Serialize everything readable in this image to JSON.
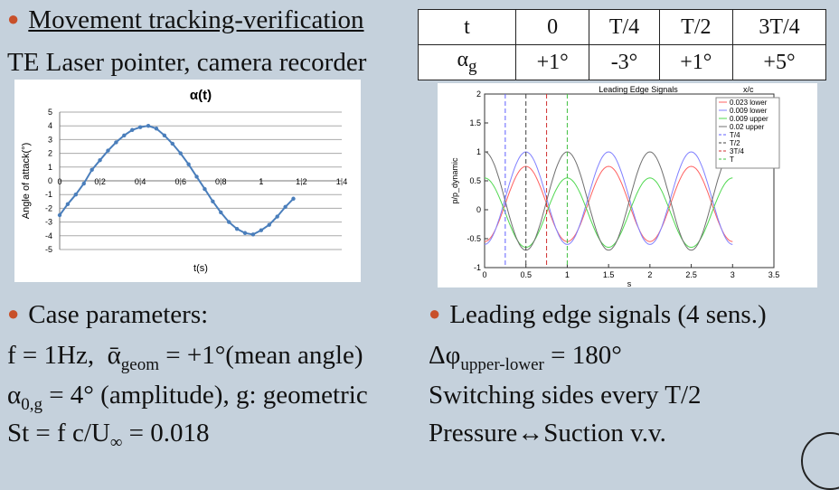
{
  "left": {
    "heading": "Movement tracking-verification",
    "subheading": "TE Laser pointer, camera recorder",
    "case_label": "Case parameters:",
    "f_text": "f = 1Hz,",
    "alpha_bar": "ᾱ",
    "geom_sub": "geom",
    "mean_text": " = +1°(mean angle)",
    "alpha0": "α",
    "a0_sub": "0,g",
    "amp_text": " = 4° (amplitude), g: geometric",
    "st_text": "St = f c/U",
    "st_sub": "∞",
    "st_val": " = 0.018"
  },
  "table": {
    "r1": [
      "t",
      "0",
      "T/4",
      "T/2",
      "3T/4"
    ],
    "r2_label": "α",
    "r2_sub": "g",
    "r2": [
      "+1°",
      "-3°",
      "+1°",
      "+5°"
    ]
  },
  "right": {
    "signals_label": "Leading edge signals (4 sens.)",
    "dphi": "Δφ",
    "dphi_sub": "upper-lower",
    "dphi_val": " = 180°",
    "switch": "Switching sides every T/2",
    "pressure": "Pressure↔Suction v.v."
  },
  "chart_data": [
    {
      "type": "line",
      "title": "α(t)",
      "xlabel": "t(s)",
      "ylabel": "Angle of attack(°)",
      "xlim": [
        0,
        1.4
      ],
      "ylim": [
        -5,
        5
      ],
      "xticks": [
        "0",
        "0,2",
        "0,4",
        "0,6",
        "0,8",
        "1",
        "1,2",
        "1,4"
      ],
      "yticks": [
        "5",
        "4",
        "3",
        "2",
        "1",
        "0",
        "-1",
        "-2",
        "-3",
        "-4",
        "-5"
      ],
      "x": [
        0,
        0.04,
        0.08,
        0.12,
        0.16,
        0.2,
        0.24,
        0.28,
        0.32,
        0.36,
        0.4,
        0.44,
        0.48,
        0.52,
        0.56,
        0.6,
        0.64,
        0.68,
        0.72,
        0.76,
        0.8,
        0.84,
        0.88,
        0.92,
        0.96,
        1.0,
        1.04,
        1.08,
        1.12,
        1.16
      ],
      "y": [
        -2.5,
        -1.7,
        -1.0,
        -0.2,
        0.8,
        1.5,
        2.2,
        2.8,
        3.3,
        3.7,
        3.9,
        4.0,
        3.8,
        3.3,
        2.7,
        2.0,
        1.2,
        0.3,
        -0.6,
        -1.5,
        -2.3,
        -3.0,
        -3.5,
        -3.8,
        -3.9,
        -3.6,
        -3.2,
        -2.6,
        -1.9,
        -1.3
      ],
      "grid": true,
      "legend": "none"
    },
    {
      "type": "line",
      "title": "Leading Edge Signals",
      "xlabel": "s",
      "ylabel": "p/p_dynamic",
      "legend_title": "x/c",
      "legend": "top-right",
      "xlim": [
        0,
        3.5
      ],
      "ylim": [
        -1,
        2
      ],
      "xticks": [
        "0",
        "0.5",
        "1",
        "1.5",
        "2",
        "2.5",
        "3",
        "3.5"
      ],
      "yticks": [
        "2",
        "1.5",
        "1",
        "0.5",
        "0",
        "-0.5",
        "-1"
      ],
      "series": [
        {
          "name": "0.023 lower",
          "color": "#ff6060",
          "phase": 0.5,
          "amp": 0.65,
          "offset": 0.1
        },
        {
          "name": "0.009 lower",
          "color": "#8080ff",
          "phase": 0.5,
          "amp": 0.8,
          "offset": 0.2
        },
        {
          "name": "0.009 upper",
          "color": "#50d850",
          "phase": 0.0,
          "amp": 0.6,
          "offset": -0.05
        },
        {
          "name": "0.02 upper",
          "color": "#707070",
          "phase": 0.0,
          "amp": 0.85,
          "offset": 0.15
        }
      ],
      "markers": [
        {
          "name": "T/4",
          "x": 0.25,
          "color": "#6060ff"
        },
        {
          "name": "T/2",
          "x": 0.5,
          "color": "#404040"
        },
        {
          "name": "3T/4",
          "x": 0.75,
          "color": "#d03030"
        },
        {
          "name": "T",
          "x": 1.0,
          "color": "#40c040"
        }
      ],
      "xrange_data": [
        0,
        3
      ]
    }
  ]
}
